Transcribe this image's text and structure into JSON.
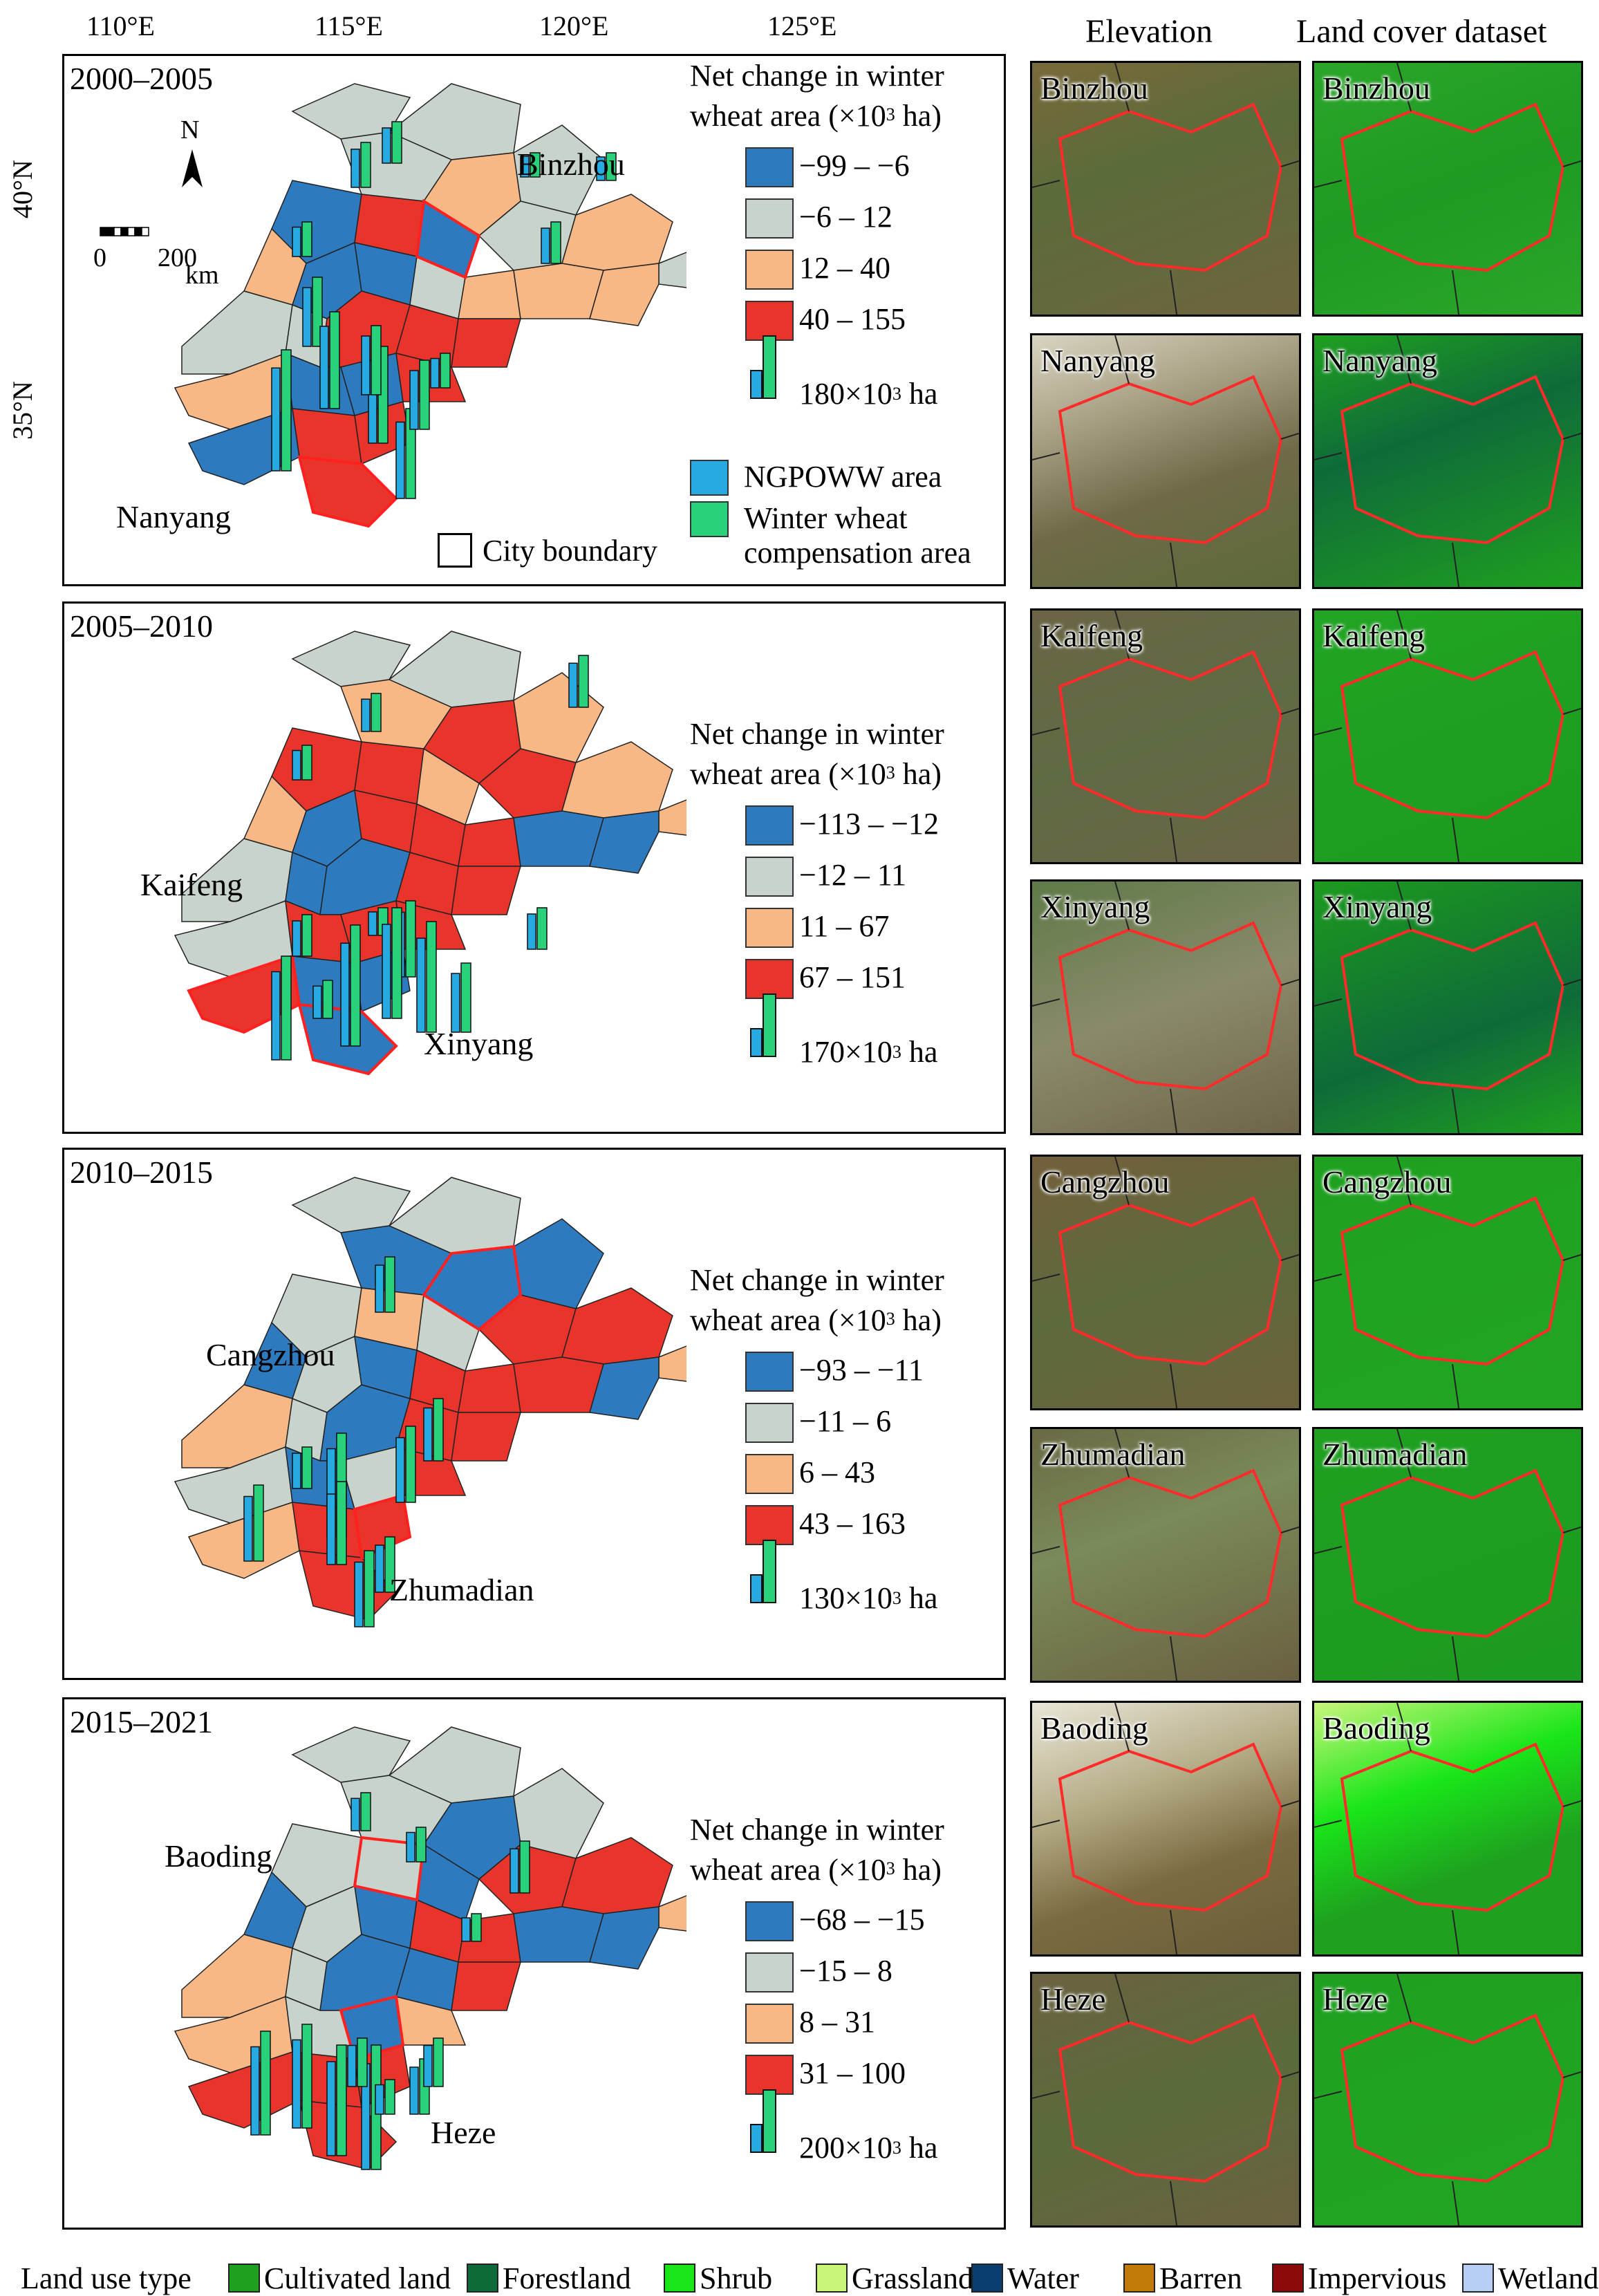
{
  "axes": {
    "lon_ticks": [
      "110°E",
      "115°E",
      "120°E",
      "125°E"
    ],
    "lat_ticks": [
      "40°N",
      "35°N"
    ]
  },
  "colors": {
    "blue": "#2e7abf",
    "gray": "#c8d3cb",
    "orange": "#f7b886",
    "red": "#e8342a",
    "bar_blue": "#27a9e1",
    "bar_green": "#29d17a"
  },
  "panels": [
    {
      "period": "2000–2005",
      "legend_title_1": "Net change in winter",
      "legend_title_2": "wheat area (×10",
      "legend_title_sup": "3",
      "legend_title_3": " ha)",
      "classes": [
        "−99 – −6",
        "−6 – 12",
        "12 – 40",
        "40 – 155"
      ],
      "bar_scale_value": "180×10",
      "bar_scale_sup": "3",
      "bar_scale_unit": " ha",
      "cities": [
        "Binzhou",
        "Nanyang"
      ],
      "extra_legend": {
        "ngpoww": "NGPOWW area",
        "comp_1": "Winter wheat",
        "comp_2": "compensation area",
        "boundary": "City boundary"
      },
      "north": "N",
      "scale_zero": "0",
      "scale_200": "200",
      "scale_km": "km"
    },
    {
      "period": "2005–2010",
      "legend_title_1": "Net change in winter",
      "legend_title_2": "wheat area (×10",
      "legend_title_sup": "3",
      "legend_title_3": " ha)",
      "classes": [
        "−113 – −12",
        "−12 – 11",
        "11 – 67",
        "67 – 151"
      ],
      "bar_scale_value": "170×10",
      "bar_scale_sup": "3",
      "bar_scale_unit": " ha",
      "cities": [
        "Kaifeng",
        "Xinyang"
      ]
    },
    {
      "period": "2010–2015",
      "legend_title_1": "Net change in winter",
      "legend_title_2": "wheat area (×10",
      "legend_title_sup": "3",
      "legend_title_3": " ha)",
      "classes": [
        "−93 – −11",
        "−11 – 6",
        "6 – 43",
        "43 – 163"
      ],
      "bar_scale_value": "130×10",
      "bar_scale_sup": "3",
      "bar_scale_unit": " ha",
      "cities": [
        "Cangzhou",
        "Zhumadian"
      ]
    },
    {
      "period": "2015–2021",
      "legend_title_1": "Net change in winter",
      "legend_title_2": "wheat area (×10",
      "legend_title_sup": "3",
      "legend_title_3": " ha)",
      "classes": [
        "−68 – −15",
        "−15 – 8",
        "8 – 31",
        "31 – 100"
      ],
      "bar_scale_value": "200×10",
      "bar_scale_sup": "3",
      "bar_scale_unit": " ha",
      "cities": [
        "Baoding",
        "Heze"
      ]
    }
  ],
  "right_columns": {
    "elevation": "Elevation",
    "landcover": "Land cover dataset",
    "tiles": [
      "Binzhou",
      "Nanyang",
      "Kaifeng",
      "Xinyang",
      "Cangzhou",
      "Zhumadian",
      "Baoding",
      "Heze"
    ]
  },
  "land_use_legend": {
    "title": "Land use type",
    "items": [
      {
        "label": "Cultivated land",
        "color": "#1fa020"
      },
      {
        "label": "Forestland",
        "color": "#0f6a3a"
      },
      {
        "label": "Shrub",
        "color": "#19e619"
      },
      {
        "label": "Grassland",
        "color": "#c8f57a"
      },
      {
        "label": "Water",
        "color": "#0a3d70"
      },
      {
        "label": "Barren",
        "color": "#c27a08"
      },
      {
        "label": "Impervious",
        "color": "#8c0a0a"
      },
      {
        "label": "Wetland",
        "color": "#b7cff5"
      }
    ]
  }
}
